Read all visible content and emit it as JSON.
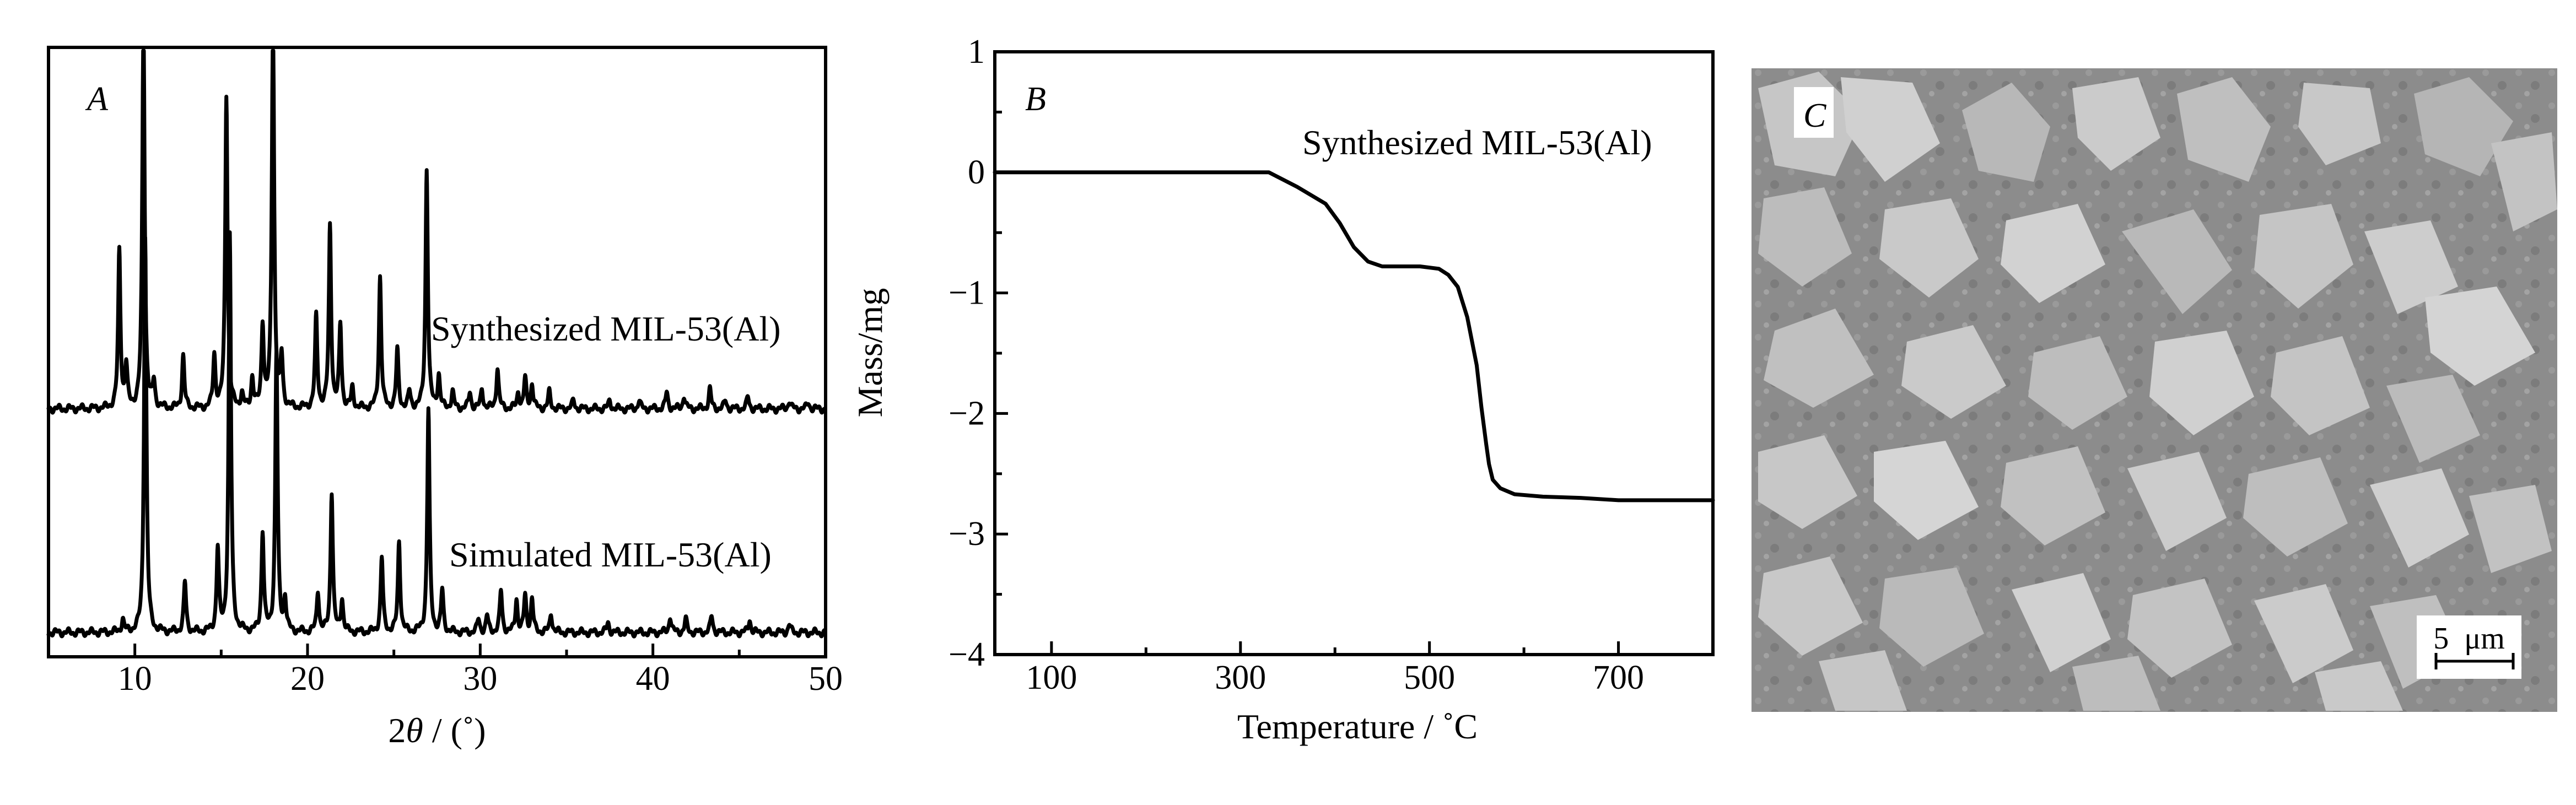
{
  "colors": {
    "ink": "#000000",
    "sem_background": "#8a8a8a",
    "label_box": "#ffffff"
  },
  "chart_data": [
    {
      "panel": "A",
      "type": "line",
      "xlabel_prefix": "2",
      "xlabel_symbol": "θ",
      "xlabel_unit": " / (˚)",
      "xlim": [
        5,
        50
      ],
      "xticks": [
        10,
        20,
        30,
        40,
        50
      ],
      "ylabel": "",
      "grid": false,
      "series": [
        {
          "name": "Synthesized MIL-53(Al)",
          "baseline": 0.0,
          "peaks": [
            {
              "x": 9.1,
              "y": 0.95
            },
            {
              "x": 9.5,
              "y": 0.25
            },
            {
              "x": 10.5,
              "y": 2.4
            },
            {
              "x": 11.1,
              "y": 0.15
            },
            {
              "x": 12.8,
              "y": 0.32
            },
            {
              "x": 14.6,
              "y": 0.32
            },
            {
              "x": 15.3,
              "y": 1.9
            },
            {
              "x": 16.2,
              "y": 0.08
            },
            {
              "x": 16.8,
              "y": 0.18
            },
            {
              "x": 17.4,
              "y": 0.5
            },
            {
              "x": 18.0,
              "y": 2.4
            },
            {
              "x": 18.5,
              "y": 0.3
            },
            {
              "x": 20.5,
              "y": 0.55
            },
            {
              "x": 21.3,
              "y": 1.1
            },
            {
              "x": 21.9,
              "y": 0.5
            },
            {
              "x": 22.6,
              "y": 0.12
            },
            {
              "x": 24.2,
              "y": 0.8
            },
            {
              "x": 25.2,
              "y": 0.35
            },
            {
              "x": 25.9,
              "y": 0.1
            },
            {
              "x": 26.9,
              "y": 1.45
            },
            {
              "x": 27.6,
              "y": 0.2
            },
            {
              "x": 28.4,
              "y": 0.1
            },
            {
              "x": 29.4,
              "y": 0.1
            },
            {
              "x": 30.1,
              "y": 0.12
            },
            {
              "x": 31.0,
              "y": 0.25
            },
            {
              "x": 32.2,
              "y": 0.1
            },
            {
              "x": 32.6,
              "y": 0.18
            },
            {
              "x": 33.0,
              "y": 0.15
            },
            {
              "x": 34.0,
              "y": 0.1
            },
            {
              "x": 35.4,
              "y": 0.05
            },
            {
              "x": 37.5,
              "y": 0.05
            },
            {
              "x": 39.2,
              "y": 0.05
            },
            {
              "x": 40.8,
              "y": 0.1
            },
            {
              "x": 41.8,
              "y": 0.08
            },
            {
              "x": 43.3,
              "y": 0.12
            },
            {
              "x": 44.2,
              "y": 0.05
            },
            {
              "x": 45.5,
              "y": 0.07
            },
            {
              "x": 47.9,
              "y": 0.05
            },
            {
              "x": 49.0,
              "y": 0.04
            }
          ]
        },
        {
          "name": "Simulated MIL-53(Al)",
          "baseline": 0.0,
          "peaks": [
            {
              "x": 9.3,
              "y": 0.08
            },
            {
              "x": 10.6,
              "y": 2.4
            },
            {
              "x": 12.9,
              "y": 0.3
            },
            {
              "x": 14.8,
              "y": 0.5
            },
            {
              "x": 15.5,
              "y": 2.4
            },
            {
              "x": 17.4,
              "y": 0.6
            },
            {
              "x": 18.2,
              "y": 1.7
            },
            {
              "x": 18.7,
              "y": 0.2
            },
            {
              "x": 20.6,
              "y": 0.25
            },
            {
              "x": 21.4,
              "y": 0.85
            },
            {
              "x": 22.0,
              "y": 0.2
            },
            {
              "x": 24.3,
              "y": 0.45
            },
            {
              "x": 25.3,
              "y": 0.55
            },
            {
              "x": 27.0,
              "y": 1.35
            },
            {
              "x": 27.8,
              "y": 0.25
            },
            {
              "x": 29.9,
              "y": 0.08
            },
            {
              "x": 30.4,
              "y": 0.1
            },
            {
              "x": 31.2,
              "y": 0.25
            },
            {
              "x": 32.1,
              "y": 0.2
            },
            {
              "x": 32.6,
              "y": 0.22
            },
            {
              "x": 33.0,
              "y": 0.2
            },
            {
              "x": 34.1,
              "y": 0.12
            },
            {
              "x": 37.4,
              "y": 0.06
            },
            {
              "x": 41.0,
              "y": 0.1
            },
            {
              "x": 41.9,
              "y": 0.08
            },
            {
              "x": 43.4,
              "y": 0.1
            },
            {
              "x": 45.6,
              "y": 0.08
            },
            {
              "x": 47.9,
              "y": 0.05
            }
          ]
        }
      ]
    },
    {
      "panel": "B",
      "type": "line",
      "xlabel": "Temperature / ˚C",
      "ylabel": "Mass/mg",
      "xlim": [
        40,
        800
      ],
      "ylim": [
        -4,
        1
      ],
      "xticks": [
        100,
        300,
        500,
        700
      ],
      "yticks": [
        1,
        0,
        -1,
        -2,
        -3,
        -4
      ],
      "ytick_labels": [
        "1",
        "0",
        "−1",
        "−2",
        "−3",
        "−4"
      ],
      "grid": false,
      "annotation": "Synthesized MIL-53(Al)",
      "series": [
        {
          "name": "Synthesized MIL-53(Al)",
          "x": [
            40,
            100,
            200,
            300,
            330,
            360,
            390,
            405,
            420,
            435,
            450,
            470,
            490,
            510,
            520,
            530,
            540,
            550,
            555,
            560,
            563,
            567,
            575,
            590,
            620,
            660,
            700,
            760,
            800
          ],
          "y": [
            0,
            0,
            0,
            0,
            0,
            -0.12,
            -0.26,
            -0.42,
            -0.62,
            -0.74,
            -0.78,
            -0.78,
            -0.78,
            -0.8,
            -0.85,
            -0.95,
            -1.2,
            -1.6,
            -1.95,
            -2.25,
            -2.42,
            -2.55,
            -2.62,
            -2.67,
            -2.69,
            -2.7,
            -2.72,
            -2.72,
            -2.72
          ]
        }
      ]
    }
  ],
  "panel_labels": {
    "a": "A",
    "b": "B",
    "c": "C"
  },
  "sem": {
    "scale_bar_label": "5  μm"
  }
}
